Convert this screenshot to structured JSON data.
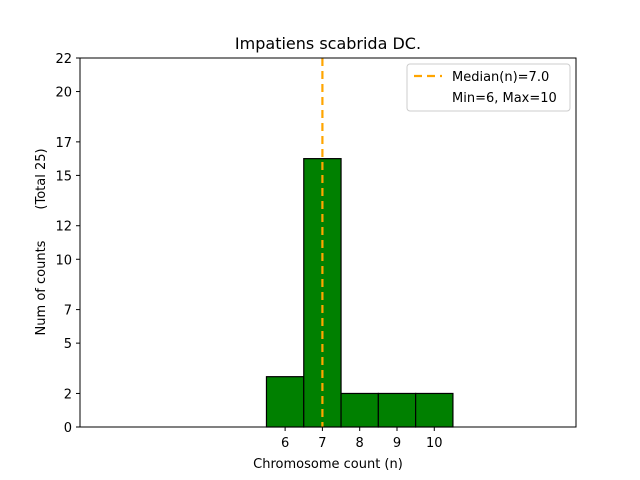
{
  "chart_data": {
    "type": "bar",
    "title": "Impatiens scabrida DC.",
    "xlabel": "Chromosome count (n)",
    "ylabel": "Num of counts",
    "ylabel_secondary": "(Total 25)",
    "categories": [
      "6",
      "7",
      "8",
      "9",
      "10"
    ],
    "x": [
      6,
      7,
      8,
      9,
      10
    ],
    "values": [
      3,
      16,
      2,
      2,
      2
    ],
    "xlim": [
      0.5,
      13.8
    ],
    "ylim": [
      0,
      22
    ],
    "yticks": [
      0,
      2,
      5,
      7,
      10,
      12,
      15,
      17,
      20,
      22
    ],
    "bar_color": "#008000",
    "bar_edge_color": "#000000",
    "median_line": {
      "value": 7.0,
      "color": "#FFA500"
    },
    "legend": {
      "location": "top-right",
      "entries": [
        "Median(n)=7.0",
        "Min=6, Max=10"
      ]
    },
    "grid": false
  }
}
